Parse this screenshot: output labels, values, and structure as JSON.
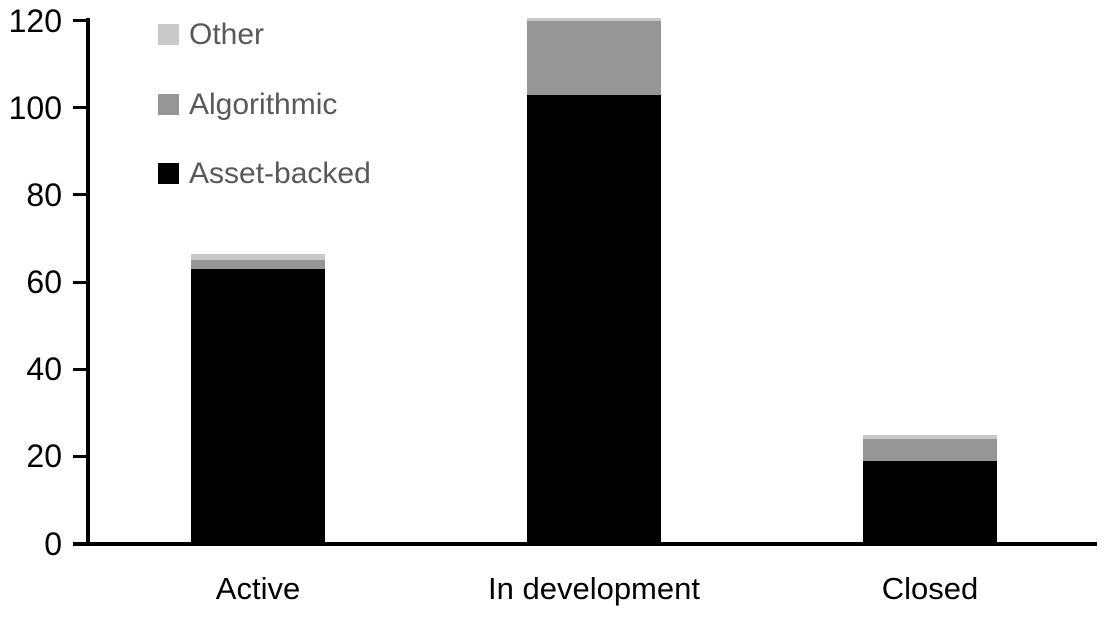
{
  "chart_data": {
    "type": "bar",
    "stacked": true,
    "categories": [
      "Active",
      "In development",
      "Closed"
    ],
    "series": [
      {
        "name": "Asset-backed",
        "color": "#000000",
        "values": [
          63,
          103,
          19
        ]
      },
      {
        "name": "Algorithmic",
        "color": "#969696",
        "values": [
          2,
          17,
          5
        ]
      },
      {
        "name": "Other",
        "color": "#c9c9c9",
        "values": [
          1.5,
          0.5,
          1
        ]
      }
    ],
    "stack_order": "bottom-to-top",
    "totals": [
      66.5,
      120.5,
      25
    ],
    "yticks": [
      0,
      20,
      40,
      60,
      80,
      100,
      120
    ],
    "ylim": [
      0,
      120
    ],
    "xlabel": "",
    "ylabel": "",
    "grid": false,
    "legend": {
      "position": "top-left",
      "order": [
        "Other",
        "Algorithmic",
        "Asset-backed"
      ],
      "text_color": "#595959"
    },
    "axis_color": "#000000",
    "label_color": "#000000",
    "background_color": "#ffffff"
  }
}
